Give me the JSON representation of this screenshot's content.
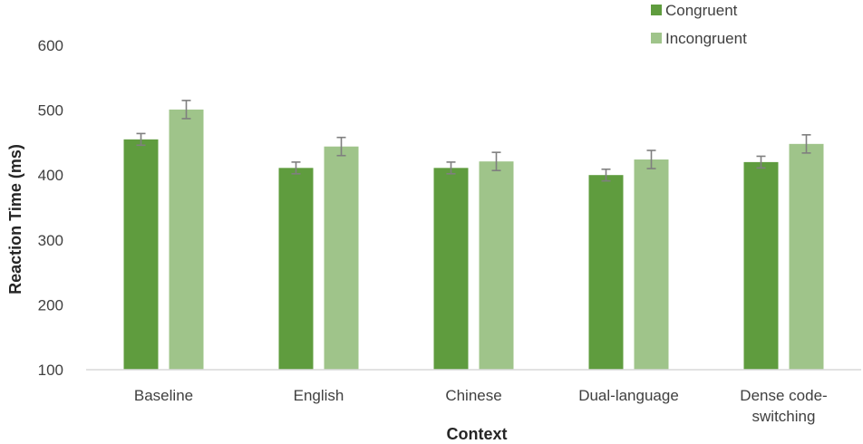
{
  "chart_data": {
    "type": "bar",
    "categories": [
      "Baseline",
      "English",
      "Chinese",
      "Dual-language",
      "Dense code-switching"
    ],
    "category_lines": [
      [
        "Baseline"
      ],
      [
        "English"
      ],
      [
        "Chinese"
      ],
      [
        "Dual-language"
      ],
      [
        "Dense code-",
        "switching"
      ]
    ],
    "series": [
      {
        "name": "Congruent",
        "color": "#5f9c3e",
        "values": [
          455,
          411,
          411,
          400,
          420
        ],
        "errors": [
          9,
          9,
          9,
          9,
          9
        ]
      },
      {
        "name": "Incongruent",
        "color": "#9fc48a",
        "values": [
          501,
          444,
          421,
          424,
          448
        ],
        "errors": [
          14,
          14,
          14,
          14,
          14
        ]
      }
    ],
    "title": "",
    "xlabel": "Context",
    "ylabel": "Reaction Time (ms)",
    "ylim": [
      100,
      600
    ],
    "yticks": [
      100,
      200,
      300,
      400,
      500,
      600
    ],
    "grid": false,
    "legend_position": "top-right"
  }
}
